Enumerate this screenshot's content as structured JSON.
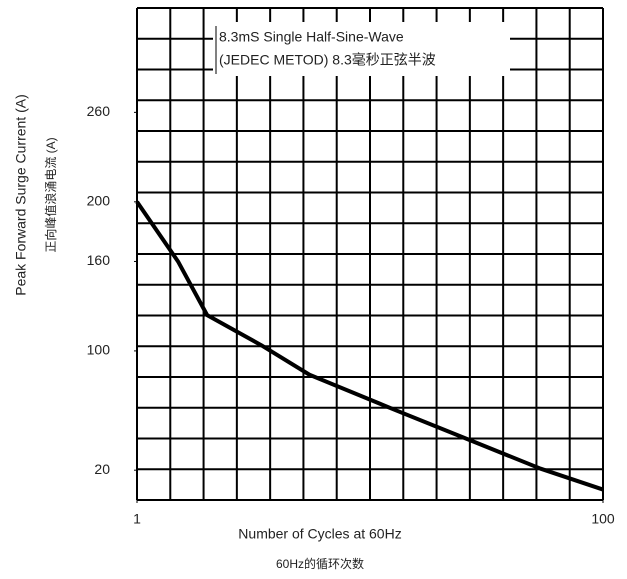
{
  "chart_data": {
    "type": "line",
    "annotation_lines": [
      "8.3mS Single Half-Sine-Wave",
      "(JEDEC METOD) 8.3毫秒正弦半波"
    ],
    "ylabel": "Peak Forward Surge Current (A)",
    "ylabel_cn": "正向峰值浪涌电流 (A)",
    "xlabel": "Number of Cycles at 60Hz",
    "xlabel_cn": "60Hz的循环次数",
    "x": [
      1,
      1.5,
      2,
      3.4,
      5.5,
      13,
      27,
      54,
      100
    ],
    "series": [
      {
        "color": "#000000",
        "values": [
          200,
          160,
          124,
          104,
          84,
          60,
          40,
          21,
          7
        ]
      }
    ],
    "xlim": [
      1,
      100
    ],
    "xticks": [
      1,
      100
    ],
    "xscale": "log",
    "ylim": [
      0,
      330
    ],
    "yticks": [
      20,
      100,
      160,
      200,
      260
    ]
  }
}
